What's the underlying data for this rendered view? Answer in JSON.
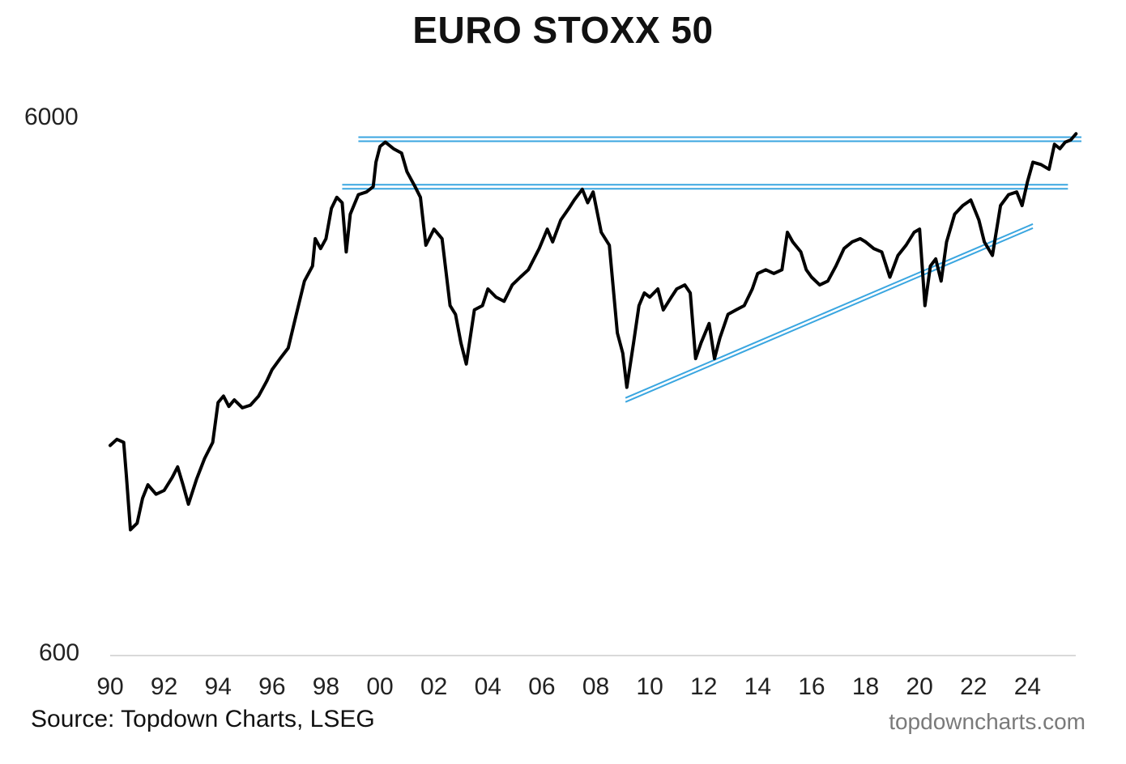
{
  "chart_data": {
    "type": "line",
    "title": "EURO STOXX 50",
    "y_scale": "log",
    "ylim": [
      600,
      6000
    ],
    "yticks": [
      6000,
      600
    ],
    "yticks_labels": [
      "6000",
      "600"
    ],
    "xlim": [
      1990,
      2026
    ],
    "x_tick_values": [
      1990,
      1992,
      1994,
      1996,
      1998,
      2000,
      2002,
      2004,
      2006,
      2008,
      2010,
      2012,
      2014,
      2016,
      2018,
      2020,
      2022,
      2024
    ],
    "x_tick_labels": [
      "90",
      "92",
      "94",
      "96",
      "98",
      "00",
      "02",
      "04",
      "06",
      "08",
      "10",
      "12",
      "14",
      "16",
      "18",
      "20",
      "22",
      "24"
    ],
    "gridlines": {
      "y_baseline": 600
    },
    "series": [
      {
        "color": "#000000",
        "points": [
          [
            1990.0,
            1480
          ],
          [
            1990.25,
            1520
          ],
          [
            1990.5,
            1500
          ],
          [
            1990.6,
            1300
          ],
          [
            1990.75,
            1030
          ],
          [
            1991.0,
            1060
          ],
          [
            1991.2,
            1180
          ],
          [
            1991.4,
            1250
          ],
          [
            1991.7,
            1200
          ],
          [
            1992.0,
            1220
          ],
          [
            1992.3,
            1290
          ],
          [
            1992.5,
            1350
          ],
          [
            1992.7,
            1250
          ],
          [
            1992.9,
            1150
          ],
          [
            1993.2,
            1280
          ],
          [
            1993.5,
            1400
          ],
          [
            1993.8,
            1500
          ],
          [
            1994.0,
            1780
          ],
          [
            1994.2,
            1830
          ],
          [
            1994.4,
            1750
          ],
          [
            1994.6,
            1800
          ],
          [
            1994.9,
            1740
          ],
          [
            1995.2,
            1760
          ],
          [
            1995.5,
            1830
          ],
          [
            1995.8,
            1950
          ],
          [
            1996.0,
            2050
          ],
          [
            1996.3,
            2150
          ],
          [
            1996.6,
            2250
          ],
          [
            1996.9,
            2600
          ],
          [
            1997.2,
            3000
          ],
          [
            1997.5,
            3200
          ],
          [
            1997.6,
            3600
          ],
          [
            1997.8,
            3450
          ],
          [
            1998.0,
            3600
          ],
          [
            1998.2,
            4100
          ],
          [
            1998.4,
            4300
          ],
          [
            1998.6,
            4200
          ],
          [
            1998.75,
            3400
          ],
          [
            1998.9,
            4000
          ],
          [
            1999.2,
            4350
          ],
          [
            1999.5,
            4400
          ],
          [
            1999.75,
            4500
          ],
          [
            1999.85,
            5000
          ],
          [
            2000.0,
            5350
          ],
          [
            2000.2,
            5450
          ],
          [
            2000.5,
            5300
          ],
          [
            2000.8,
            5200
          ],
          [
            2001.0,
            4800
          ],
          [
            2001.3,
            4500
          ],
          [
            2001.5,
            4300
          ],
          [
            2001.7,
            3500
          ],
          [
            2002.0,
            3750
          ],
          [
            2002.3,
            3600
          ],
          [
            2002.6,
            2700
          ],
          [
            2002.8,
            2600
          ],
          [
            2003.0,
            2300
          ],
          [
            2003.2,
            2100
          ],
          [
            2003.5,
            2650
          ],
          [
            2003.8,
            2700
          ],
          [
            2004.0,
            2900
          ],
          [
            2004.3,
            2800
          ],
          [
            2004.6,
            2750
          ],
          [
            2004.9,
            2950
          ],
          [
            2005.2,
            3050
          ],
          [
            2005.5,
            3150
          ],
          [
            2005.9,
            3450
          ],
          [
            2006.2,
            3750
          ],
          [
            2006.4,
            3550
          ],
          [
            2006.7,
            3900
          ],
          [
            2007.0,
            4100
          ],
          [
            2007.2,
            4250
          ],
          [
            2007.5,
            4450
          ],
          [
            2007.7,
            4200
          ],
          [
            2007.9,
            4400
          ],
          [
            2008.2,
            3700
          ],
          [
            2008.5,
            3500
          ],
          [
            2008.8,
            2400
          ],
          [
            2009.0,
            2200
          ],
          [
            2009.15,
            1900
          ],
          [
            2009.4,
            2300
          ],
          [
            2009.6,
            2700
          ],
          [
            2009.8,
            2850
          ],
          [
            2010.0,
            2800
          ],
          [
            2010.3,
            2900
          ],
          [
            2010.5,
            2650
          ],
          [
            2010.8,
            2800
          ],
          [
            2011.0,
            2900
          ],
          [
            2011.3,
            2950
          ],
          [
            2011.5,
            2850
          ],
          [
            2011.7,
            2150
          ],
          [
            2011.9,
            2300
          ],
          [
            2012.2,
            2500
          ],
          [
            2012.4,
            2150
          ],
          [
            2012.6,
            2350
          ],
          [
            2012.9,
            2600
          ],
          [
            2013.2,
            2650
          ],
          [
            2013.5,
            2700
          ],
          [
            2013.8,
            2900
          ],
          [
            2014.0,
            3100
          ],
          [
            2014.3,
            3150
          ],
          [
            2014.6,
            3100
          ],
          [
            2014.9,
            3150
          ],
          [
            2015.1,
            3700
          ],
          [
            2015.3,
            3550
          ],
          [
            2015.6,
            3400
          ],
          [
            2015.8,
            3150
          ],
          [
            2016.0,
            3050
          ],
          [
            2016.3,
            2950
          ],
          [
            2016.6,
            3000
          ],
          [
            2016.9,
            3200
          ],
          [
            2017.2,
            3450
          ],
          [
            2017.5,
            3550
          ],
          [
            2017.8,
            3600
          ],
          [
            2018.0,
            3550
          ],
          [
            2018.3,
            3450
          ],
          [
            2018.6,
            3400
          ],
          [
            2018.9,
            3050
          ],
          [
            2019.2,
            3350
          ],
          [
            2019.5,
            3500
          ],
          [
            2019.8,
            3700
          ],
          [
            2020.0,
            3750
          ],
          [
            2020.2,
            2700
          ],
          [
            2020.4,
            3200
          ],
          [
            2020.6,
            3300
          ],
          [
            2020.8,
            3000
          ],
          [
            2021.0,
            3550
          ],
          [
            2021.3,
            4000
          ],
          [
            2021.6,
            4150
          ],
          [
            2021.9,
            4250
          ],
          [
            2022.2,
            3900
          ],
          [
            2022.4,
            3550
          ],
          [
            2022.7,
            3350
          ],
          [
            2023.0,
            4150
          ],
          [
            2023.3,
            4350
          ],
          [
            2023.6,
            4400
          ],
          [
            2023.8,
            4150
          ],
          [
            2024.0,
            4600
          ],
          [
            2024.2,
            5000
          ],
          [
            2024.5,
            4950
          ],
          [
            2024.8,
            4850
          ],
          [
            2025.0,
            5400
          ],
          [
            2025.2,
            5300
          ],
          [
            2025.4,
            5450
          ],
          [
            2025.6,
            5500
          ],
          [
            2025.8,
            5650
          ]
        ]
      }
    ],
    "annotations": [
      {
        "type": "resistance_line",
        "color": "#3aa6e0",
        "level": 5520,
        "x_range": [
          1999.2,
          2026
        ]
      },
      {
        "type": "resistance_line",
        "color": "#3aa6e0",
        "level": 4500,
        "x_range": [
          1998.6,
          2025.5
        ]
      },
      {
        "type": "support_trendline",
        "color": "#3aa6e0",
        "from": [
          2009.1,
          1800
        ],
        "to": [
          2024.2,
          3800
        ]
      }
    ],
    "source": "Source: Topdown Charts, LSEG",
    "brand": "topdowncharts.com"
  }
}
